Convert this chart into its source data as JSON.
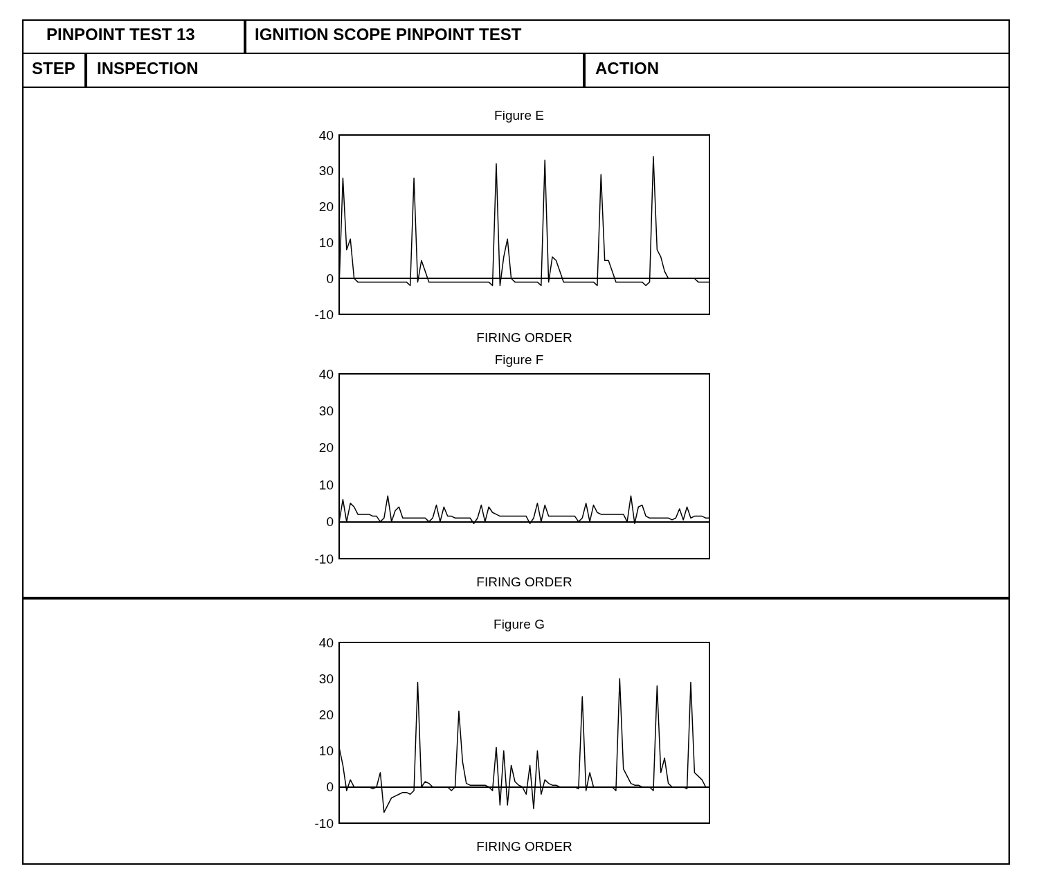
{
  "chart_data": [
    {
      "type": "other",
      "annotations": [
        "PINPOINT TEST 13",
        "IGNITION SCOPE PINPOINT TEST",
        "STEP",
        "INSPECTION",
        "ACTION"
      ]
    },
    {
      "type": "line",
      "title": "Figure E",
      "xlabel": "FIRING ORDER",
      "color": "#000000",
      "ylim": [
        -10,
        40
      ],
      "yticks": [
        -10,
        0,
        10,
        20,
        30,
        40
      ],
      "tick_labels": "y",
      "categories": [
        null,
        null,
        null,
        null,
        null,
        null,
        null,
        null,
        null,
        null,
        null,
        null,
        null,
        null,
        null,
        null,
        null,
        null,
        null,
        null,
        null,
        null,
        null,
        null,
        null,
        null,
        null,
        null,
        null,
        null,
        null,
        null,
        null,
        null,
        null,
        null,
        null,
        null,
        null,
        null,
        null,
        null,
        null,
        null,
        null,
        null,
        null,
        null,
        null,
        null,
        null,
        null,
        null,
        null,
        null,
        null,
        null,
        null,
        null,
        null,
        null,
        null,
        null,
        null,
        null,
        null,
        null,
        null,
        null,
        null,
        null,
        null,
        null,
        null,
        null,
        null,
        null,
        null,
        null,
        null,
        null,
        null,
        null,
        null,
        null,
        null,
        null,
        null,
        null,
        null,
        null,
        null,
        null,
        null,
        null,
        null,
        null,
        null,
        null,
        null
      ],
      "values": [
        -2,
        28,
        8,
        11,
        0,
        -1,
        -1,
        -1,
        -1,
        -1,
        -1,
        -1,
        -1,
        -1,
        -1,
        -1,
        -1,
        -1,
        -1,
        -2,
        28,
        -1,
        5,
        2,
        -1,
        -1,
        -1,
        -1,
        -1,
        -1,
        -1,
        -1,
        -1,
        -1,
        -1,
        -1,
        -1,
        -1,
        -1,
        -1,
        -1,
        -2,
        32,
        -2,
        6,
        11,
        0,
        -1,
        -1,
        -1,
        -1,
        -1,
        -1,
        -1,
        -2,
        33,
        -1,
        6,
        5,
        2,
        -1,
        -1,
        -1,
        -1,
        -1,
        -1,
        -1,
        -1,
        -1,
        -2,
        29,
        5,
        5,
        2,
        -1,
        -1,
        -1,
        -1,
        -1,
        -1,
        -1,
        -1,
        -2,
        -1,
        34,
        8,
        6,
        2,
        0,
        0,
        0,
        0,
        0,
        0,
        0,
        0,
        -1,
        -1,
        -1,
        -1
      ]
    },
    {
      "type": "line",
      "title": "Figure F",
      "xlabel": "FIRING ORDER",
      "color": "#000000",
      "ylim": [
        -10,
        40
      ],
      "yticks": [
        -10,
        0,
        10,
        20,
        30,
        40
      ],
      "tick_labels": "y",
      "categories": [
        null,
        null,
        null,
        null,
        null,
        null,
        null,
        null,
        null,
        null,
        null,
        null,
        null,
        null,
        null,
        null,
        null,
        null,
        null,
        null,
        null,
        null,
        null,
        null,
        null,
        null,
        null,
        null,
        null,
        null,
        null,
        null,
        null,
        null,
        null,
        null,
        null,
        null,
        null,
        null,
        null,
        null,
        null,
        null,
        null,
        null,
        null,
        null,
        null,
        null,
        null,
        null,
        null,
        null,
        null,
        null,
        null,
        null,
        null,
        null,
        null,
        null,
        null,
        null,
        null,
        null,
        null,
        null,
        null,
        null,
        null,
        null,
        null,
        null,
        null,
        null,
        null,
        null,
        null,
        null,
        null,
        null,
        null,
        null,
        null,
        null,
        null,
        null,
        null,
        null,
        null,
        null,
        null,
        null,
        null,
        null,
        null,
        null,
        null,
        null
      ],
      "values": [
        0,
        6,
        0,
        5,
        4,
        2,
        2,
        2,
        2,
        1.5,
        1.5,
        0,
        1,
        7,
        0,
        3,
        4,
        1,
        1,
        1,
        1,
        1,
        1,
        1,
        0,
        1,
        4.5,
        0,
        4,
        1.5,
        1.5,
        1,
        1,
        1,
        1,
        1,
        -0.5,
        1,
        4.5,
        0,
        4,
        2.5,
        2,
        1.5,
        1.5,
        1.5,
        1.5,
        1.5,
        1.5,
        1.5,
        1.5,
        -0.5,
        1,
        5,
        0,
        4.5,
        1.5,
        1.5,
        1.5,
        1.5,
        1.5,
        1.5,
        1.5,
        1.5,
        0,
        1,
        5,
        0,
        4.5,
        2.5,
        2,
        2,
        2,
        2,
        2,
        2,
        2,
        0,
        7,
        -0.5,
        4,
        4.5,
        1.5,
        1,
        1,
        1,
        1,
        1,
        1,
        0.5,
        1,
        3.5,
        0.5,
        4,
        1,
        1.5,
        1.5,
        1.5,
        1,
        1
      ]
    },
    {
      "type": "line",
      "title": "Figure G",
      "xlabel": "FIRING ORDER",
      "color": "#000000",
      "ylim": [
        -10,
        40
      ],
      "yticks": [
        -10,
        0,
        10,
        20,
        30,
        40
      ],
      "tick_labels": "y",
      "categories": [
        null,
        null,
        null,
        null,
        null,
        null,
        null,
        null,
        null,
        null,
        null,
        null,
        null,
        null,
        null,
        null,
        null,
        null,
        null,
        null,
        null,
        null,
        null,
        null,
        null,
        null,
        null,
        null,
        null,
        null,
        null,
        null,
        null,
        null,
        null,
        null,
        null,
        null,
        null,
        null,
        null,
        null,
        null,
        null,
        null,
        null,
        null,
        null,
        null,
        null,
        null,
        null,
        null,
        null,
        null,
        null,
        null,
        null,
        null,
        null,
        null,
        null,
        null,
        null,
        null,
        null,
        null,
        null,
        null,
        null,
        null,
        null,
        null,
        null,
        null,
        null,
        null,
        null,
        null,
        null,
        null,
        null,
        null,
        null,
        null,
        null,
        null,
        null,
        null,
        null,
        null,
        null,
        null,
        null,
        null,
        null,
        null,
        null,
        null,
        null
      ],
      "values": [
        11,
        6,
        -1,
        2,
        0,
        0,
        0,
        0,
        0,
        -0.5,
        0,
        4,
        -7,
        -5,
        -3,
        -2.5,
        -2,
        -1.5,
        -1.5,
        -2,
        -1,
        29,
        0,
        1.5,
        1,
        0,
        0,
        0,
        0,
        0,
        -1,
        0,
        21,
        7,
        1,
        0.5,
        0.5,
        0.5,
        0.5,
        0.5,
        0,
        -1,
        11,
        -5,
        10,
        -5,
        6,
        1.5,
        0.5,
        0,
        -2,
        6,
        -6,
        10,
        -2,
        2,
        1,
        0.5,
        0.5,
        0,
        0,
        0,
        0,
        0,
        -0.5,
        25,
        -1,
        4,
        0,
        0,
        0,
        0,
        0,
        0,
        -1,
        30,
        5,
        3,
        1,
        0.5,
        0.5,
        0,
        0,
        0,
        -1,
        28,
        4,
        8,
        1,
        0,
        0,
        0,
        0,
        -0.5,
        29,
        4,
        3,
        2,
        0,
        0
      ]
    }
  ]
}
